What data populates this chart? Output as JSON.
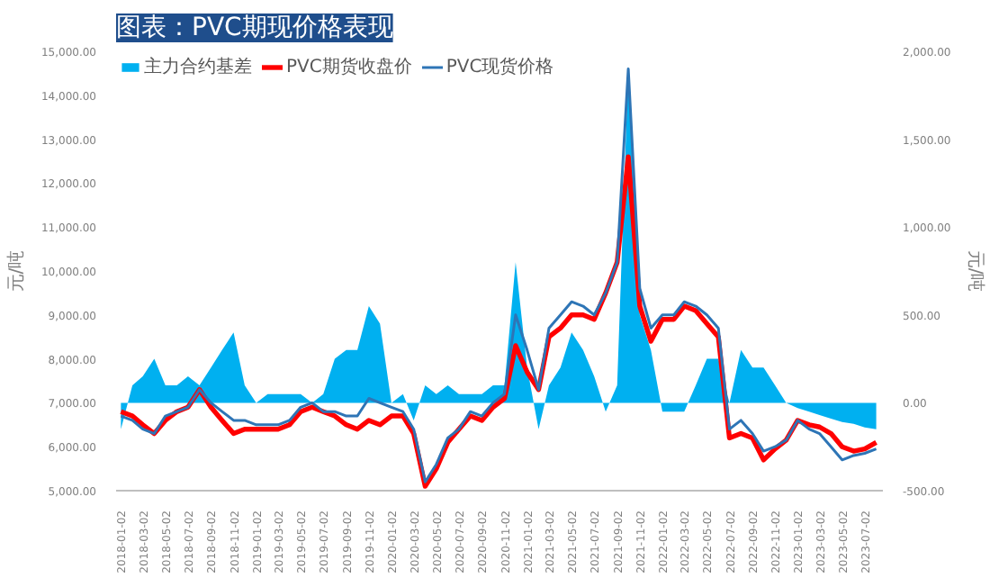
{
  "chart_data": {
    "type": "line",
    "title": "图表：PVC期现价格表现",
    "ylabel": "元/吨",
    "y2label": "元/吨",
    "x": [
      "2018-01-02",
      "2018-02-02",
      "2018-03-02",
      "2018-04-02",
      "2018-05-02",
      "2018-06-02",
      "2018-07-02",
      "2018-08-02",
      "2018-09-02",
      "2018-10-02",
      "2018-11-02",
      "2018-12-02",
      "2019-01-02",
      "2019-02-02",
      "2019-03-02",
      "2019-04-02",
      "2019-05-02",
      "2019-06-02",
      "2019-07-02",
      "2019-08-02",
      "2019-09-02",
      "2019-10-02",
      "2019-11-02",
      "2019-12-02",
      "2020-01-02",
      "2020-02-02",
      "2020-03-02",
      "2020-04-02",
      "2020-05-02",
      "2020-06-02",
      "2020-07-02",
      "2020-08-02",
      "2020-09-02",
      "2020-10-02",
      "2020-11-02",
      "2020-12-02",
      "2021-01-02",
      "2021-02-02",
      "2021-03-02",
      "2021-04-02",
      "2021-05-02",
      "2021-06-02",
      "2021-07-02",
      "2021-08-02",
      "2021-09-02",
      "2021-10-02",
      "2021-11-02",
      "2021-12-02",
      "2022-01-02",
      "2022-02-02",
      "2022-03-02",
      "2022-04-02",
      "2022-05-02",
      "2022-06-02",
      "2022-07-02",
      "2022-08-02",
      "2022-09-02",
      "2022-10-02",
      "2022-11-02",
      "2022-12-02",
      "2023-01-02",
      "2023-02-02",
      "2023-03-02",
      "2023-04-02",
      "2023-05-02",
      "2023-06-02",
      "2023-07-02",
      "2023-08-02"
    ],
    "series": [
      {
        "name": "主力合约基差",
        "type": "area",
        "axis": "y2",
        "color": "#00b0f0",
        "values": [
          -150,
          100,
          150,
          250,
          100,
          100,
          150,
          100,
          200,
          300,
          400,
          100,
          0,
          50,
          50,
          50,
          50,
          0,
          50,
          250,
          300,
          300,
          550,
          450,
          0,
          50,
          -100,
          100,
          50,
          100,
          50,
          50,
          50,
          100,
          100,
          800,
          200,
          -150,
          100,
          200,
          400,
          300,
          150,
          -50,
          100,
          1900,
          500,
          300,
          -50,
          -50,
          -50,
          100,
          250,
          250,
          0,
          300,
          200,
          200,
          100,
          0,
          -30,
          -50,
          -70,
          -90,
          -110,
          -120,
          -140,
          -150
        ]
      },
      {
        "name": "PVC期货收盘价",
        "color": "#ff0000",
        "values": [
          6800,
          6700,
          6500,
          6300,
          6600,
          6800,
          6900,
          7300,
          6900,
          6600,
          6300,
          6400,
          6400,
          6400,
          6400,
          6500,
          6800,
          6900,
          6800,
          6700,
          6500,
          6400,
          6600,
          6500,
          6700,
          6700,
          6300,
          5100,
          5500,
          6100,
          6400,
          6700,
          6600,
          6900,
          7100,
          8300,
          7700,
          7300,
          8500,
          8700,
          9000,
          9000,
          8900,
          9500,
          10200,
          12600,
          9200,
          8400,
          8900,
          8900,
          9200,
          9100,
          8800,
          8500,
          6200,
          6300,
          6200,
          5700,
          5950,
          6150,
          6600,
          6500,
          6450,
          6300,
          6000,
          5900,
          5950,
          6100
        ]
      },
      {
        "name": "PVC现货价格",
        "color": "#2e75b6",
        "values": [
          6700,
          6600,
          6400,
          6300,
          6700,
          6800,
          6900,
          7300,
          7000,
          6800,
          6600,
          6600,
          6500,
          6500,
          6500,
          6600,
          6900,
          7000,
          6800,
          6800,
          6700,
          6700,
          7100,
          7000,
          6900,
          6800,
          6400,
          5200,
          5600,
          6200,
          6400,
          6800,
          6700,
          7000,
          7200,
          9000,
          8200,
          7300,
          8700,
          9000,
          9300,
          9200,
          9000,
          9500,
          10200,
          14600,
          9600,
          8700,
          9000,
          9000,
          9300,
          9200,
          9000,
          8700,
          6400,
          6600,
          6300,
          5900,
          6000,
          6150,
          6600,
          6400,
          6300,
          6000,
          5700,
          5800,
          5850,
          5950
        ]
      }
    ],
    "xlim": [
      "2017-12-20",
      "2023-08-20"
    ],
    "xticks": [
      "2018-01-02",
      "2018-03-02",
      "2018-05-02",
      "2018-07-02",
      "2018-09-02",
      "2018-11-02",
      "2019-01-02",
      "2019-03-02",
      "2019-05-02",
      "2019-07-02",
      "2019-09-02",
      "2019-11-02",
      "2020-01-02",
      "2020-03-02",
      "2020-05-02",
      "2020-07-02",
      "2020-09-02",
      "2020-11-02",
      "2021-01-02",
      "2021-03-02",
      "2021-05-02",
      "2021-07-02",
      "2021-09-02",
      "2021-11-02",
      "2022-01-02",
      "2022-03-02",
      "2022-05-02",
      "2022-07-02",
      "2022-09-02",
      "2022-11-02",
      "2023-01-02",
      "2023-03-02",
      "2023-05-02",
      "2023-07-02"
    ],
    "ylim": [
      5000,
      15000
    ],
    "yticks": [
      {
        "value": 5000,
        "label": "5,000.00"
      },
      {
        "value": 6000,
        "label": "6,000.00"
      },
      {
        "value": 7000,
        "label": "7,000.00"
      },
      {
        "value": 8000,
        "label": "8,000.00"
      },
      {
        "value": 9000,
        "label": "9,000.00"
      },
      {
        "value": 10000,
        "label": "10,000.00"
      },
      {
        "value": 11000,
        "label": "11,000.00"
      },
      {
        "value": 12000,
        "label": "12,000.00"
      },
      {
        "value": 13000,
        "label": "13,000.00"
      },
      {
        "value": 14000,
        "label": "14,000.00"
      },
      {
        "value": 15000,
        "label": "15,000.00"
      }
    ],
    "y2lim": [
      -500,
      2000
    ],
    "y2ticks": [
      {
        "value": -500,
        "label": "-500.00"
      },
      {
        "value": 0,
        "label": "0.00"
      },
      {
        "value": 500,
        "label": "500.00"
      },
      {
        "value": 1000,
        "label": "1,000.00"
      },
      {
        "value": 1500,
        "label": "1,500.00"
      },
      {
        "value": 2000,
        "label": "2,000.00"
      }
    ],
    "grid": false,
    "legend": "top left"
  }
}
